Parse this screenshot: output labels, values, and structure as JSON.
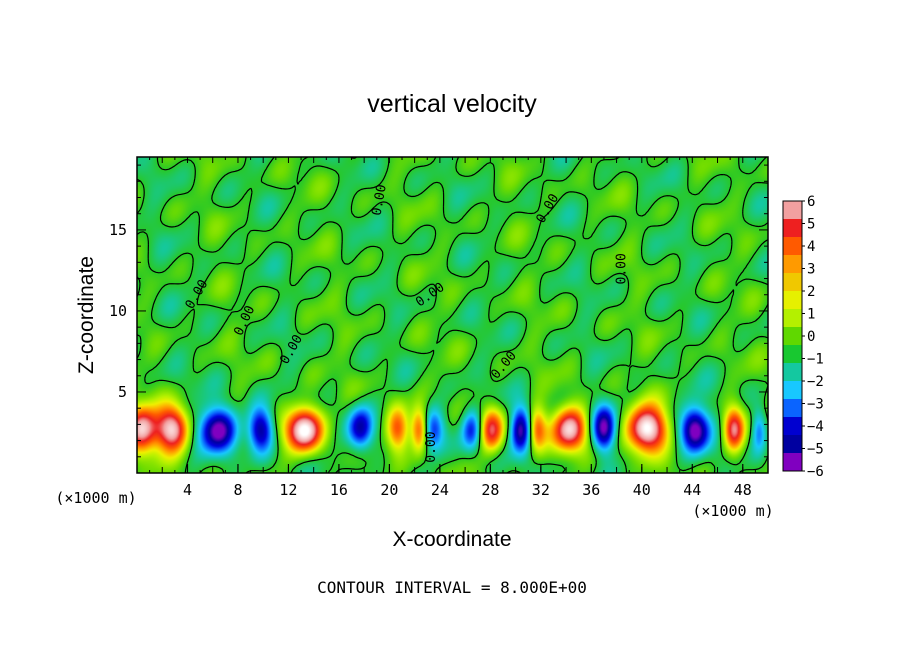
{
  "chart_data": {
    "type": "heatmap",
    "title": "vertical velocity",
    "xlabel": "X-coordinate",
    "ylabel": "Z-coordinate",
    "x_unit": "(×1000 m)",
    "z_unit": "(×1000 m)",
    "xlim": [
      0,
      50
    ],
    "ylim": [
      0,
      19.5
    ],
    "x_ticks": [
      4,
      8,
      12,
      16,
      20,
      24,
      28,
      32,
      36,
      40,
      44,
      48
    ],
    "y_ticks": [
      5,
      10,
      15
    ],
    "contour_interval_label": "CONTOUR INTERVAL = 8.000E+00",
    "contour_label": "0.00",
    "colorbar": {
      "min": -6,
      "max": 6,
      "ticks": [
        6,
        5,
        4,
        3,
        2,
        1,
        0,
        -1,
        -2,
        -3,
        -4,
        -5,
        -6
      ],
      "colors": [
        "#f2a0a0",
        "#ee2020",
        "#ff5a00",
        "#ff9a00",
        "#f0c800",
        "#e6f000",
        "#b4f000",
        "#60d800",
        "#18c830",
        "#14c8a0",
        "#18c8ff",
        "#0a64ff",
        "#0000d0",
        "#0000a0",
        "#8000c0"
      ]
    },
    "lower_cells": [
      {
        "x": 0.4,
        "w": 1.2,
        "amp": 6.5
      },
      {
        "x": 2.8,
        "w": 1.3,
        "amp": 7.0
      },
      {
        "x": 6.4,
        "w": 1.5,
        "amp": -6.0
      },
      {
        "x": 9.8,
        "w": 1.0,
        "amp": -5.5
      },
      {
        "x": 13.2,
        "w": 1.4,
        "amp": 8.0
      },
      {
        "x": 17.7,
        "w": 1.0,
        "amp": -5.0
      },
      {
        "x": 20.7,
        "w": 0.9,
        "amp": 4.5
      },
      {
        "x": 22.4,
        "w": 0.7,
        "amp": 5.0
      },
      {
        "x": 23.5,
        "w": 0.9,
        "amp": -4.0
      },
      {
        "x": 26.5,
        "w": 0.8,
        "amp": -4.0
      },
      {
        "x": 28.1,
        "w": 0.9,
        "amp": 5.5
      },
      {
        "x": 30.4,
        "w": 0.8,
        "amp": -5.5
      },
      {
        "x": 31.7,
        "w": 0.7,
        "amp": 4.0
      },
      {
        "x": 34.3,
        "w": 1.3,
        "amp": 6.5
      },
      {
        "x": 37.0,
        "w": 0.9,
        "amp": -5.5
      },
      {
        "x": 40.4,
        "w": 1.5,
        "amp": 8.0
      },
      {
        "x": 44.2,
        "w": 1.1,
        "amp": -6.5
      },
      {
        "x": 47.3,
        "w": 0.8,
        "amp": 5.5
      },
      {
        "x": 49.3,
        "w": 0.6,
        "amp": -3.0
      }
    ]
  }
}
